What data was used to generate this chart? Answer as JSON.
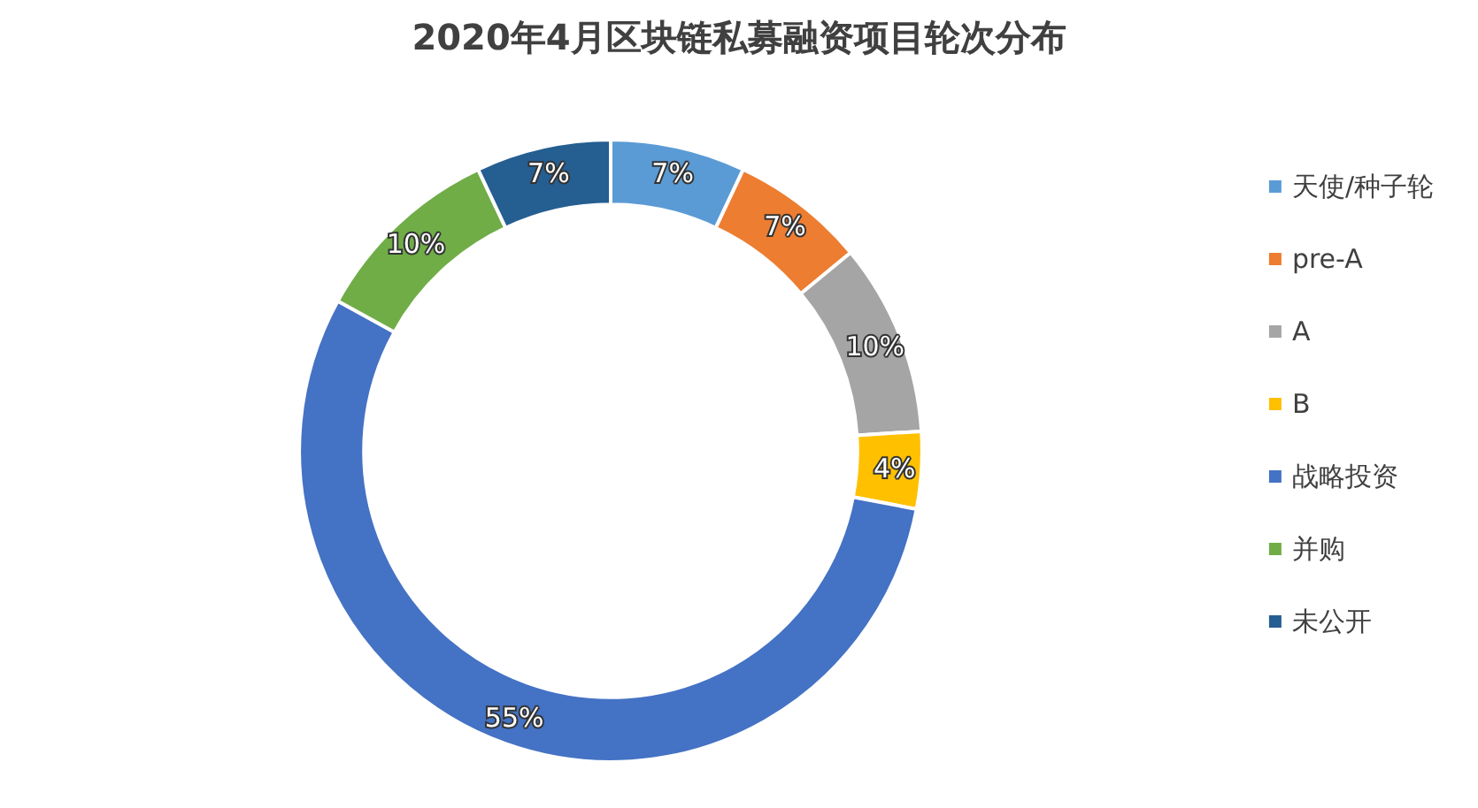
{
  "chart_data": {
    "type": "donut",
    "title": "2020年4月区块链私募融资项目轮次分布",
    "categories": [
      "天使/种子轮",
      "pre-A",
      "A",
      "B",
      "战略投资",
      "并购",
      "未公开"
    ],
    "values": [
      7,
      7,
      10,
      4,
      55,
      10,
      7
    ],
    "value_labels": [
      "7%",
      "7%",
      "10%",
      "4%",
      "55%",
      "10%",
      "7%"
    ],
    "colors": [
      "#5b9bd5",
      "#ed7d31",
      "#a5a5a5",
      "#ffc000",
      "#4472c4",
      "#70ad47",
      "#255e91"
    ],
    "legend": "right"
  }
}
